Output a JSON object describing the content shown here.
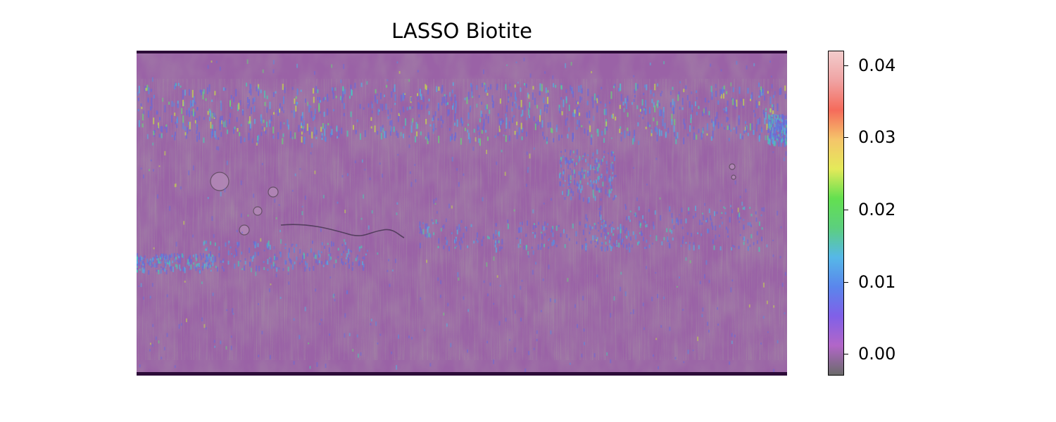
{
  "title": "LASSO Biotite",
  "colorbar": {
    "ticks": [
      {
        "value": 0.0,
        "label": "0.00"
      },
      {
        "value": 0.01,
        "label": "0.01"
      },
      {
        "value": 0.02,
        "label": "0.02"
      },
      {
        "value": 0.03,
        "label": "0.03"
      },
      {
        "value": 0.04,
        "label": "0.04"
      }
    ],
    "range": [
      -0.003,
      0.042
    ],
    "colors": [
      "#6b6b6b",
      "#b266c8",
      "#8060e8",
      "#5a86ec",
      "#56b8e8",
      "#5ccf7e",
      "#63e050",
      "#e4ea5a",
      "#f5c56a",
      "#f56b5b",
      "#f0a3a3",
      "#f2cccc"
    ]
  },
  "map": {
    "base_color": "#9a62a6",
    "band_color": "#2c0b38",
    "shade_color": "#6f6a62",
    "highlight_colors": [
      "#6a6ad8",
      "#5a8ae0",
      "#56aee0",
      "#4fc6b0",
      "#6bd07a",
      "#c6d84a"
    ]
  }
}
